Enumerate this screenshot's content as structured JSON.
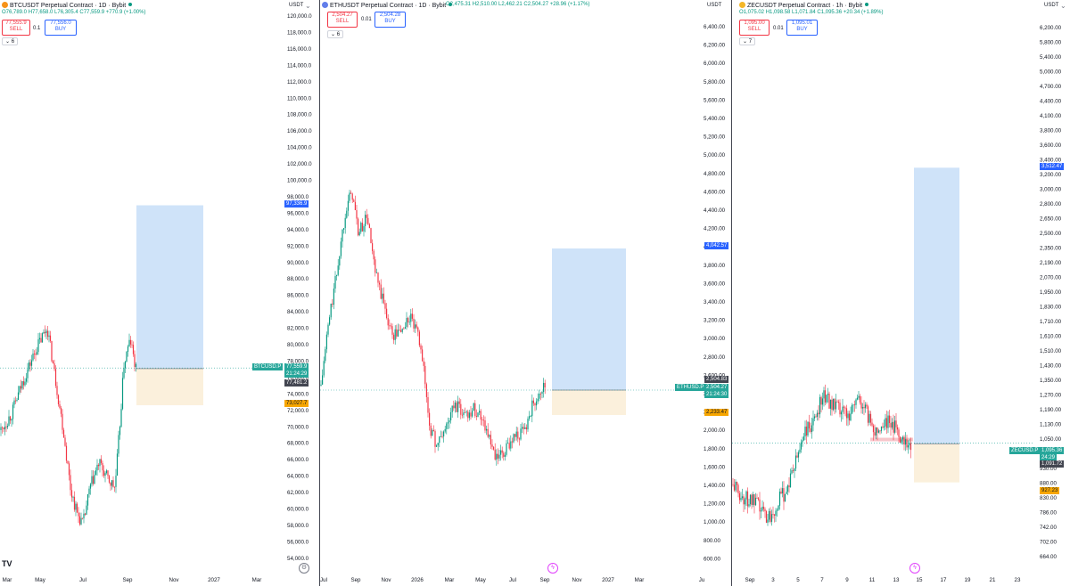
{
  "colors": {
    "up": "#089981",
    "down": "#f23645",
    "profit_zone": "#cfe3f9",
    "loss_zone": "#fbf0dc",
    "target_tag": "#2962ff",
    "stop_tag": "#f7a600",
    "price_tag": "#26a69a",
    "dark_tag": "#434651"
  },
  "panels": [
    {
      "id": "btc",
      "icon_color": "#f7931a",
      "title": "BTCUSDT Perpetual Contract · 1D · Bybit",
      "ohlc": "O76,789.0 H77,658.0 L76,305.4 C77,559.9 +770.9 (+1.00%)",
      "sell_price": "77,555.9",
      "sell_label": "SELL",
      "spread": "0.1",
      "buy_price": "77,556.0",
      "buy_label": "BUY",
      "indicator_count": "6",
      "unit": "USDT",
      "y_ticks": [
        "120,000.0",
        "118,000.0",
        "116,000.0",
        "114,000.0",
        "112,000.0",
        "110,000.0",
        "108,000.0",
        "106,000.0",
        "104,000.0",
        "102,000.0",
        "100,000.0",
        "98,000.0",
        "96,000.0",
        "94,000.0",
        "92,000.0",
        "90,000.0",
        "88,000.0",
        "86,000.0",
        "84,000.0",
        "82,000.0",
        "80,000.0",
        "78,000.0",
        "76,000.0",
        "74,000.0",
        "72,000.0",
        "70,000.0",
        "68,000.0",
        "66,000.0",
        "64,000.0",
        "62,000.0",
        "60,000.0",
        "58,000.0",
        "56,000.0",
        "54,000.0"
      ],
      "x_ticks": [
        "Mar",
        "May",
        "Jul",
        "Sep",
        "Nov",
        "2027",
        "Mar"
      ],
      "symbol_tag": "BTCUSD.P",
      "price_tag": "77,559.9",
      "countdown": "21:24:29",
      "entry_tag": "77,481.2",
      "target_tag": "97,336.9",
      "stop_tag": "73,027.7",
      "logo_text": "TV"
    },
    {
      "id": "eth",
      "icon_color": "#627eea",
      "title": "ETHUSDT Perpetual Contract · 1D · Bybit",
      "ohlc": "O2,475.31 H2,510.00 L2,462.21 C2,504.27 +28.96 (+1.17%)",
      "sell_price": "2,504.27",
      "sell_label": "SELL",
      "spread": "0.01",
      "buy_price": "2,504.28",
      "buy_label": "BUY",
      "indicator_count": "6",
      "unit": "USDT",
      "y_ticks": [
        "6,400.00",
        "6,200.00",
        "6,000.00",
        "5,800.00",
        "5,600.00",
        "5,400.00",
        "5,200.00",
        "5,000.00",
        "4,800.00",
        "4,600.00",
        "4,400.00",
        "4,200.00",
        "4,000.00",
        "3,800.00",
        "3,600.00",
        "3,400.00",
        "3,200.00",
        "3,000.00",
        "2,800.00",
        "2,600.00",
        "2,400.00",
        "2,200.00",
        "2,000.00",
        "1,800.00",
        "1,600.00",
        "1,400.00",
        "1,200.00",
        "1,000.00",
        "800.00",
        "600.00"
      ],
      "x_ticks": [
        "Jul",
        "Sep",
        "Nov",
        "2026",
        "Mar",
        "May",
        "Jul",
        "Sep",
        "Nov",
        "2027",
        "Mar",
        "Ju"
      ],
      "symbol_tag": "ETHUSD.P",
      "price_tag": "2,504.27",
      "countdown": "21:24:30",
      "entry_tag": "2,504.83",
      "target_tag": "4,042.57",
      "stop_tag": "2,233.47"
    },
    {
      "id": "zec",
      "icon_color": "#f4b728",
      "title": "ZECUSDT Perpetual Contract · 1h · Bybit",
      "ohlc": "O1,075.02 H1,098.58 L1,071.84 C1,095.36 +20.34 (+1.89%)",
      "sell_price": "1,095.00",
      "sell_label": "SELL",
      "spread": "0.01",
      "buy_price": "1,095.01",
      "buy_label": "BUY",
      "indicator_count": "7",
      "unit": "USDT",
      "left_ticks": [
        "6,400.00",
        "6,200.00",
        "6,000.00",
        "5,800.00",
        "5,600.00",
        "5,400.00",
        "5,200.00",
        "5,000.00",
        "4,800.00",
        "4,600.00",
        "4,400.00",
        "4,200.00",
        "4,000.00",
        "3,800.00",
        "3,600.00",
        "3,400.00",
        "3,200.00",
        "3,000.00",
        "2,800.00",
        "2,600.00",
        "2,400.00",
        "2,200.00",
        "2,000.00",
        "1,800.00",
        "1,600.00",
        "1,400.00",
        "1,200.00",
        "1,000.00",
        "800.00",
        "600.00"
      ],
      "y_ticks": [
        "6,200.00",
        "5,800.00",
        "5,400.00",
        "5,000.00",
        "4,700.00",
        "4,400.00",
        "4,100.00",
        "3,800.00",
        "3,600.00",
        "3,400.00",
        "3,200.00",
        "3,000.00",
        "2,800.00",
        "2,650.00",
        "2,500.00",
        "2,350.00",
        "2,190.00",
        "2,070.00",
        "1,950.00",
        "1,830.00",
        "1,710.00",
        "1,610.00",
        "1,510.00",
        "1,430.00",
        "1,350.00",
        "1,270.00",
        "1,190.00",
        "1,130.00",
        "1,050.00",
        "990.00",
        "930.00",
        "880.00",
        "830.00",
        "786.00",
        "742.00",
        "702.00",
        "664.00"
      ],
      "x_ticks": [
        "Sep",
        "3",
        "5",
        "7",
        "9",
        "11",
        "13",
        "15",
        "17",
        "19",
        "21",
        "23"
      ],
      "symbol_tag": "ZECUSD.P",
      "price_tag": "1,095.36",
      "countdown": "24:29",
      "entry_tag": "1,091.72",
      "target_tag": "3,512.47",
      "stop_tag": "927.23"
    }
  ],
  "chart_data": [
    {
      "type": "candlestick",
      "title": "BTCUSDT Perpetual Contract · 1D · Bybit",
      "unit": "USDT",
      "ylim": [
        53000,
        121000
      ],
      "path": [
        [
          0,
          70000
        ],
        [
          12,
          72000
        ],
        [
          25,
          76000
        ],
        [
          40,
          80000
        ],
        [
          52,
          82500
        ],
        [
          60,
          77000
        ],
        [
          70,
          70000
        ],
        [
          78,
          63000
        ],
        [
          85,
          60000
        ],
        [
          92,
          58500
        ],
        [
          100,
          63000
        ],
        [
          110,
          66000
        ],
        [
          120,
          64000
        ],
        [
          128,
          63000
        ],
        [
          133,
          70000
        ],
        [
          138,
          78000
        ],
        [
          145,
          81000
        ],
        [
          152,
          77000
        ]
      ],
      "position": {
        "entry": 77481.2,
        "target": 97336.9,
        "stop": 73027.7
      },
      "last_price": 77559.9
    },
    {
      "type": "candlestick",
      "title": "ETHUSDT Perpetual Contract · 1D · Bybit",
      "unit": "USDT",
      "ylim": [
        550,
        6500
      ],
      "path": [
        [
          0,
          2550
        ],
        [
          8,
          3200
        ],
        [
          18,
          3800
        ],
        [
          28,
          4500
        ],
        [
          35,
          4650
        ],
        [
          42,
          4200
        ],
        [
          52,
          4400
        ],
        [
          60,
          3800
        ],
        [
          70,
          3450
        ],
        [
          80,
          3100
        ],
        [
          90,
          3150
        ],
        [
          100,
          3300
        ],
        [
          112,
          3000
        ],
        [
          122,
          2100
        ],
        [
          130,
          1900
        ],
        [
          140,
          2100
        ],
        [
          150,
          2350
        ],
        [
          160,
          2250
        ],
        [
          172,
          2300
        ],
        [
          182,
          2200
        ],
        [
          195,
          1750
        ],
        [
          205,
          1800
        ],
        [
          215,
          2000
        ],
        [
          228,
          2050
        ],
        [
          236,
          2300
        ],
        [
          244,
          2500
        ],
        [
          252,
          2540
        ]
      ],
      "position": {
        "entry": 2504.83,
        "target": 4042.57,
        "stop": 2233.47
      },
      "last_price": 2504.27
    },
    {
      "type": "candlestick",
      "title": "ZECUSDT Perpetual Contract · 1h · Bybit",
      "unit": "USDT",
      "ylim": [
        640,
        6500
      ],
      "path": [
        [
          0,
          920
        ],
        [
          10,
          870
        ],
        [
          20,
          860
        ],
        [
          30,
          830
        ],
        [
          40,
          800
        ],
        [
          50,
          850
        ],
        [
          60,
          900
        ],
        [
          70,
          1000
        ],
        [
          80,
          1150
        ],
        [
          90,
          1180
        ],
        [
          100,
          1350
        ],
        [
          110,
          1300
        ],
        [
          120,
          1250
        ],
        [
          130,
          1240
        ],
        [
          140,
          1330
        ],
        [
          150,
          1240
        ],
        [
          160,
          1150
        ],
        [
          170,
          1200
        ],
        [
          180,
          1180
        ],
        [
          190,
          1120
        ],
        [
          200,
          1090
        ]
      ],
      "position": {
        "entry": 1091.72,
        "target": 3512.47,
        "stop": 927.23
      },
      "last_price": 1095.36
    }
  ]
}
